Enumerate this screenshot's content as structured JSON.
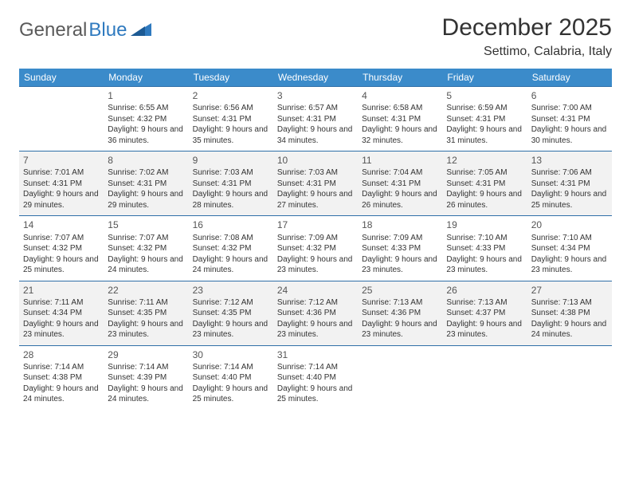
{
  "logo": {
    "text1": "General",
    "text2": "Blue"
  },
  "title": "December 2025",
  "location": "Settimo, Calabria, Italy",
  "header_bg": "#3b8bca",
  "header_text_color": "#ffffff",
  "row_stripe_color": "#f2f2f2",
  "row_border_color": "#2f6fa8",
  "weekdays": [
    "Sunday",
    "Monday",
    "Tuesday",
    "Wednesday",
    "Thursday",
    "Friday",
    "Saturday"
  ],
  "start_offset": 1,
  "days": [
    {
      "n": "1",
      "sunrise": "6:55 AM",
      "sunset": "4:32 PM",
      "daylight": "9 hours and 36 minutes."
    },
    {
      "n": "2",
      "sunrise": "6:56 AM",
      "sunset": "4:31 PM",
      "daylight": "9 hours and 35 minutes."
    },
    {
      "n": "3",
      "sunrise": "6:57 AM",
      "sunset": "4:31 PM",
      "daylight": "9 hours and 34 minutes."
    },
    {
      "n": "4",
      "sunrise": "6:58 AM",
      "sunset": "4:31 PM",
      "daylight": "9 hours and 32 minutes."
    },
    {
      "n": "5",
      "sunrise": "6:59 AM",
      "sunset": "4:31 PM",
      "daylight": "9 hours and 31 minutes."
    },
    {
      "n": "6",
      "sunrise": "7:00 AM",
      "sunset": "4:31 PM",
      "daylight": "9 hours and 30 minutes."
    },
    {
      "n": "7",
      "sunrise": "7:01 AM",
      "sunset": "4:31 PM",
      "daylight": "9 hours and 29 minutes."
    },
    {
      "n": "8",
      "sunrise": "7:02 AM",
      "sunset": "4:31 PM",
      "daylight": "9 hours and 29 minutes."
    },
    {
      "n": "9",
      "sunrise": "7:03 AM",
      "sunset": "4:31 PM",
      "daylight": "9 hours and 28 minutes."
    },
    {
      "n": "10",
      "sunrise": "7:03 AM",
      "sunset": "4:31 PM",
      "daylight": "9 hours and 27 minutes."
    },
    {
      "n": "11",
      "sunrise": "7:04 AM",
      "sunset": "4:31 PM",
      "daylight": "9 hours and 26 minutes."
    },
    {
      "n": "12",
      "sunrise": "7:05 AM",
      "sunset": "4:31 PM",
      "daylight": "9 hours and 26 minutes."
    },
    {
      "n": "13",
      "sunrise": "7:06 AM",
      "sunset": "4:31 PM",
      "daylight": "9 hours and 25 minutes."
    },
    {
      "n": "14",
      "sunrise": "7:07 AM",
      "sunset": "4:32 PM",
      "daylight": "9 hours and 25 minutes."
    },
    {
      "n": "15",
      "sunrise": "7:07 AM",
      "sunset": "4:32 PM",
      "daylight": "9 hours and 24 minutes."
    },
    {
      "n": "16",
      "sunrise": "7:08 AM",
      "sunset": "4:32 PM",
      "daylight": "9 hours and 24 minutes."
    },
    {
      "n": "17",
      "sunrise": "7:09 AM",
      "sunset": "4:32 PM",
      "daylight": "9 hours and 23 minutes."
    },
    {
      "n": "18",
      "sunrise": "7:09 AM",
      "sunset": "4:33 PM",
      "daylight": "9 hours and 23 minutes."
    },
    {
      "n": "19",
      "sunrise": "7:10 AM",
      "sunset": "4:33 PM",
      "daylight": "9 hours and 23 minutes."
    },
    {
      "n": "20",
      "sunrise": "7:10 AM",
      "sunset": "4:34 PM",
      "daylight": "9 hours and 23 minutes."
    },
    {
      "n": "21",
      "sunrise": "7:11 AM",
      "sunset": "4:34 PM",
      "daylight": "9 hours and 23 minutes."
    },
    {
      "n": "22",
      "sunrise": "7:11 AM",
      "sunset": "4:35 PM",
      "daylight": "9 hours and 23 minutes."
    },
    {
      "n": "23",
      "sunrise": "7:12 AM",
      "sunset": "4:35 PM",
      "daylight": "9 hours and 23 minutes."
    },
    {
      "n": "24",
      "sunrise": "7:12 AM",
      "sunset": "4:36 PM",
      "daylight": "9 hours and 23 minutes."
    },
    {
      "n": "25",
      "sunrise": "7:13 AM",
      "sunset": "4:36 PM",
      "daylight": "9 hours and 23 minutes."
    },
    {
      "n": "26",
      "sunrise": "7:13 AM",
      "sunset": "4:37 PM",
      "daylight": "9 hours and 23 minutes."
    },
    {
      "n": "27",
      "sunrise": "7:13 AM",
      "sunset": "4:38 PM",
      "daylight": "9 hours and 24 minutes."
    },
    {
      "n": "28",
      "sunrise": "7:14 AM",
      "sunset": "4:38 PM",
      "daylight": "9 hours and 24 minutes."
    },
    {
      "n": "29",
      "sunrise": "7:14 AM",
      "sunset": "4:39 PM",
      "daylight": "9 hours and 24 minutes."
    },
    {
      "n": "30",
      "sunrise": "7:14 AM",
      "sunset": "4:40 PM",
      "daylight": "9 hours and 25 minutes."
    },
    {
      "n": "31",
      "sunrise": "7:14 AM",
      "sunset": "4:40 PM",
      "daylight": "9 hours and 25 minutes."
    }
  ],
  "labels": {
    "sunrise": "Sunrise:",
    "sunset": "Sunset:",
    "daylight": "Daylight:"
  }
}
